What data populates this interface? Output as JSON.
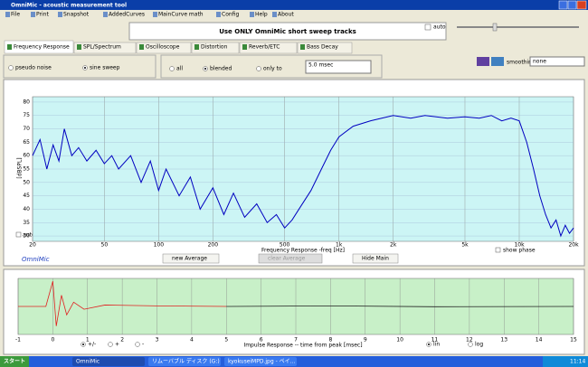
{
  "window": {
    "title": "OmniMic - acoustic measurement tool"
  },
  "menu": [
    "File",
    "Print",
    "Snapshot",
    "AddedCurves",
    "MainCurve math",
    "Config",
    "Help",
    "About"
  ],
  "banner": "Use ONLY OmniMic short sweep tracks",
  "auto_label": "auto",
  "tabs": [
    "Frequency Response",
    "SPL/Spectrum",
    "Oscilloscope",
    "Distortion",
    "Reverb/ETC",
    "Bass Decay"
  ],
  "signal_options": [
    "pseudo noise",
    "sine sweep"
  ],
  "average_options": [
    "all",
    "blended",
    "only to"
  ],
  "only_to_value": "5.0 msec",
  "smoothing_label": "smoothing",
  "smoothing_value": "none",
  "buttons": [
    "new Average",
    "clear Average",
    "Hide Main"
  ],
  "show_phase": "show phase",
  "chart_auto": "auto",
  "brand": "OmniMic",
  "impulse_options": [
    "+/-",
    "+",
    "-"
  ],
  "scale_options": [
    "lin",
    "log"
  ],
  "taskbar": {
    "start": "スタート",
    "items": [
      "OmniMic",
      "リムーバブル ディスク (G:)",
      "kyokuseiMPD.jpg - ペイ..."
    ],
    "clock": "11:14"
  },
  "chart_data": [
    {
      "type": "line",
      "x_label": "Frequency Response -freq [Hz]",
      "y_label": "[dBSPL]",
      "log_x": true,
      "grid": true,
      "x": [
        20,
        22,
        24,
        26,
        28,
        30,
        33,
        36,
        40,
        45,
        50,
        55,
        60,
        70,
        80,
        90,
        100,
        110,
        130,
        150,
        170,
        200,
        230,
        260,
        300,
        350,
        400,
        450,
        500,
        550,
        600,
        700,
        800,
        900,
        1000,
        1200,
        1500,
        2000,
        2500,
        3000,
        4000,
        5000,
        6000,
        7000,
        8000,
        9000,
        10000,
        11000,
        12000,
        13000,
        14000,
        15000,
        16000,
        17000,
        18000,
        19000,
        20000
      ],
      "series": [
        {
          "color": "#0000c0",
          "values": [
            60,
            66,
            55,
            64,
            58,
            70,
            60,
            63,
            58,
            62,
            57,
            60,
            55,
            60,
            50,
            58,
            47,
            55,
            45,
            52,
            40,
            48,
            38,
            46,
            37,
            42,
            35,
            38,
            33,
            36,
            40,
            47,
            55,
            62,
            67,
            71,
            73,
            75,
            74,
            75,
            74,
            74.5,
            74,
            75,
            73,
            74,
            73,
            65,
            55,
            45,
            38,
            33,
            36,
            30,
            34,
            31,
            33
          ]
        }
      ],
      "xlim": [
        20,
        20000
      ],
      "xticks": [
        20,
        50,
        100,
        200,
        500,
        {
          "value": 1000,
          "label": "1k"
        },
        {
          "value": 2000,
          "label": "2k"
        },
        {
          "value": 5000,
          "label": "5k"
        },
        {
          "value": 10000,
          "label": "10k"
        },
        {
          "value": 20000,
          "label": "20k"
        }
      ],
      "ylim": [
        28,
        82
      ],
      "yticks": [
        30,
        35,
        40,
        45,
        50,
        55,
        60,
        65,
        70,
        75,
        80
      ]
    },
    {
      "type": "line",
      "x_label": "Impulse Response  -- time from peak [msec]",
      "grid": true,
      "series": [
        {
          "color": "#e02020",
          "x": [
            -1,
            -0.2,
            0,
            0.1,
            0.25,
            0.4,
            0.6,
            0.9,
            1.5,
            3,
            5
          ],
          "values": [
            0,
            0,
            0.9,
            -0.7,
            0.4,
            -0.3,
            0.15,
            -0.1,
            0.05,
            0.02,
            0
          ]
        },
        {
          "color": "#202020",
          "x": [
            5,
            8,
            11,
            15
          ],
          "values": [
            0,
            0.02,
            -0.01,
            0
          ]
        }
      ],
      "xlim": [
        -1,
        15
      ],
      "xticks": [
        -1,
        0,
        1,
        2,
        3,
        4,
        5,
        6,
        7,
        8,
        9,
        10,
        11,
        12,
        13,
        14,
        15
      ],
      "ylim": [
        -1,
        1
      ]
    }
  ]
}
